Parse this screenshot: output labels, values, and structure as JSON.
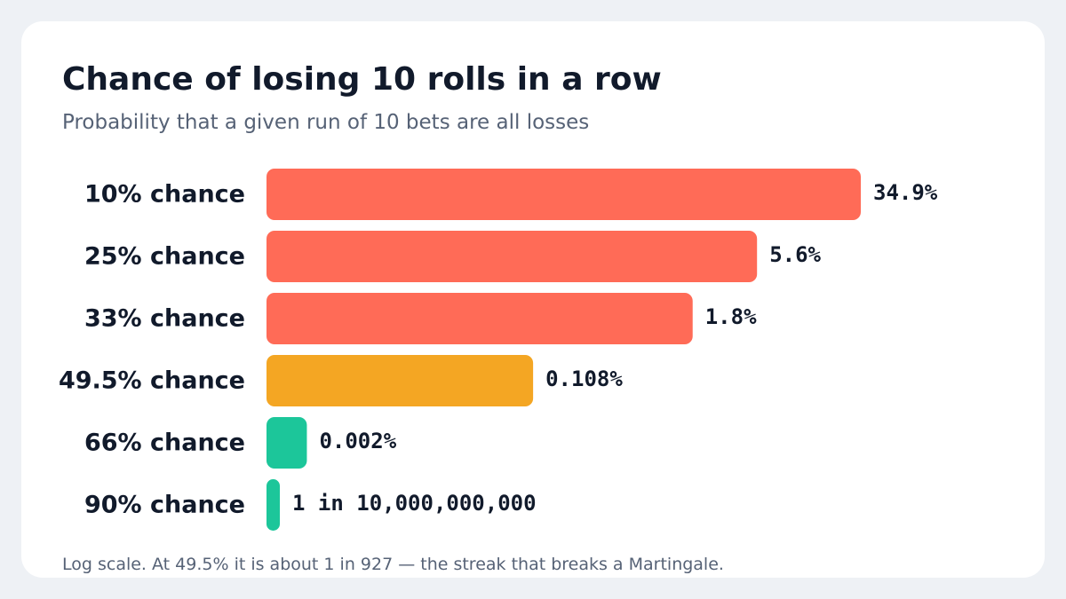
{
  "chart_data": {
    "type": "bar",
    "orientation": "horizontal",
    "title": "Chance of losing 10 rolls in a row",
    "subtitle": "Probability that a given run of 10 bets are all losses",
    "categories": [
      "10% chance",
      "25% chance",
      "33% chance",
      "49.5% chance",
      "66% chance",
      "90% chance"
    ],
    "values": [
      34.9,
      5.6,
      1.8,
      0.108,
      0.002,
      1e-08
    ],
    "value_labels": [
      "34.9%",
      "5.6%",
      "1.8%",
      "0.108%",
      "0.002%",
      "1 in 10,000,000,000"
    ],
    "bar_colors": [
      "#ff6b57",
      "#ff6b57",
      "#ff6b57",
      "#f4a623",
      "#1cc69a",
      "#1cc69a"
    ],
    "value_unit": "%",
    "x_scale": "log",
    "grid": false,
    "legend": "none",
    "footnote": "Log scale. At 49.5% it is about 1 in 927 — the streak that breaks a Martingale."
  }
}
